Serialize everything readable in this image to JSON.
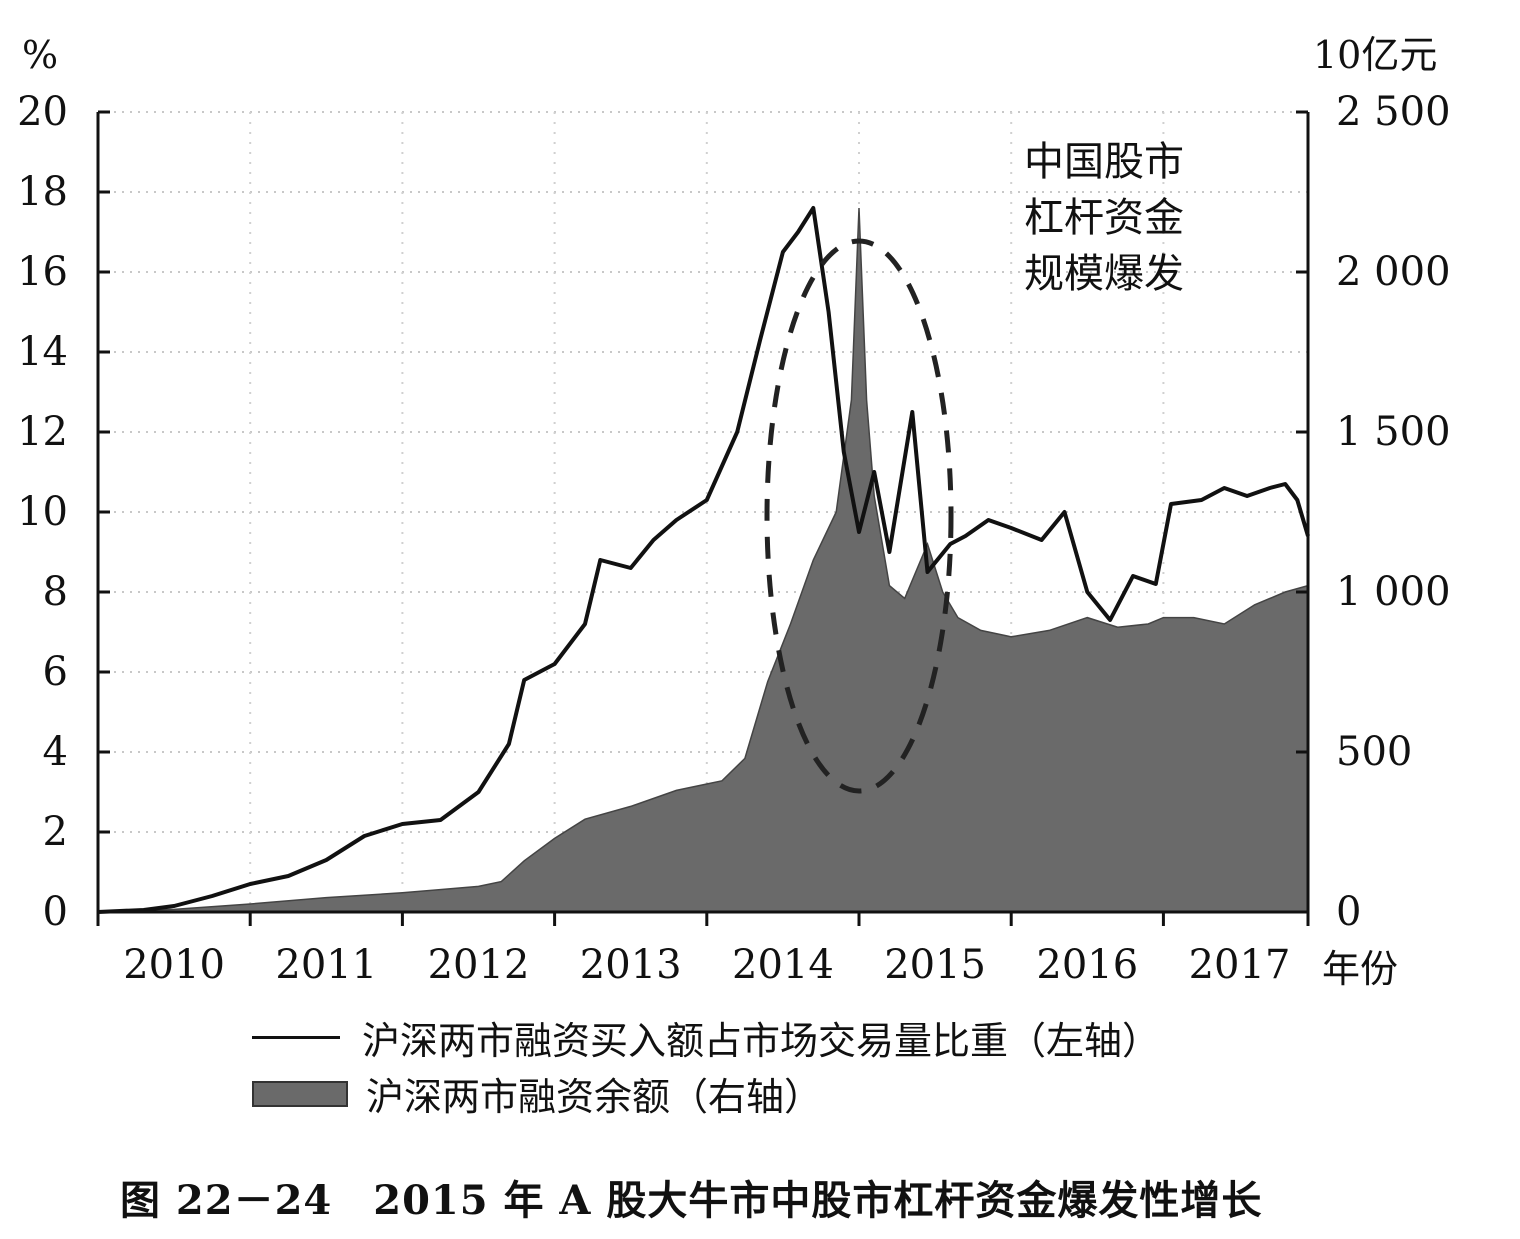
{
  "chart_data": {
    "type": "line",
    "left_unit": "%",
    "right_unit": "10亿元",
    "x_unit": "年份",
    "x_ticks": [
      "2010",
      "2011",
      "2012",
      "2013",
      "2014",
      "2015",
      "2016",
      "2017"
    ],
    "x_range": [
      2010.0,
      2017.95
    ],
    "left_ylim": [
      0,
      20
    ],
    "left_yticks": [
      "0",
      "2",
      "4",
      "6",
      "8",
      "10",
      "12",
      "14",
      "16",
      "18",
      "20"
    ],
    "right_ylim": [
      0,
      2500
    ],
    "right_yticks": [
      "0",
      "500",
      "1 000",
      "1 500",
      "2 000",
      "2 500"
    ],
    "grid": true,
    "annotation": [
      "中国股市",
      "杠杆资金",
      "规模爆发"
    ],
    "series": [
      {
        "name": "沪深两市融资买入额占市场交易量比重（左轴）",
        "axis": "left",
        "style": "line",
        "color": "#111111",
        "x": [
          2010.0,
          2010.3,
          2010.5,
          2010.75,
          2011.0,
          2011.25,
          2011.5,
          2011.75,
          2012.0,
          2012.25,
          2012.5,
          2012.7,
          2012.8,
          2013.0,
          2013.2,
          2013.3,
          2013.5,
          2013.65,
          2013.8,
          2014.0,
          2014.2,
          2014.35,
          2014.5,
          2014.6,
          2014.7,
          2014.8,
          2014.9,
          2015.0,
          2015.1,
          2015.2,
          2015.35,
          2015.45,
          2015.6,
          2015.7,
          2015.85,
          2016.0,
          2016.2,
          2016.35,
          2016.5,
          2016.65,
          2016.8,
          2016.95,
          2017.05,
          2017.25,
          2017.4,
          2017.55,
          2017.7,
          2017.8,
          2017.88,
          2017.95
        ],
        "values": [
          0.0,
          0.05,
          0.15,
          0.4,
          0.7,
          0.9,
          1.3,
          1.9,
          2.2,
          2.3,
          3.0,
          4.2,
          5.8,
          6.2,
          7.2,
          8.8,
          8.6,
          9.3,
          9.8,
          10.3,
          12.0,
          14.3,
          16.5,
          17.0,
          17.6,
          15.0,
          11.5,
          9.5,
          11.0,
          9.0,
          12.5,
          8.5,
          9.2,
          9.4,
          9.8,
          9.6,
          9.3,
          10.0,
          8.0,
          7.3,
          8.4,
          8.2,
          10.2,
          10.3,
          10.6,
          10.4,
          10.6,
          10.7,
          10.3,
          9.4
        ]
      },
      {
        "name": "沪深两市融资余额（右轴）",
        "axis": "right",
        "style": "area",
        "color": "#6a6a6a",
        "x": [
          2010.0,
          2010.5,
          2011.0,
          2011.5,
          2012.0,
          2012.5,
          2012.65,
          2012.8,
          2013.0,
          2013.2,
          2013.5,
          2013.8,
          2014.0,
          2014.1,
          2014.25,
          2014.4,
          2014.55,
          2014.7,
          2014.85,
          2014.95,
          2015.0,
          2015.05,
          2015.1,
          2015.2,
          2015.3,
          2015.45,
          2015.55,
          2015.65,
          2015.8,
          2016.0,
          2016.25,
          2016.5,
          2016.7,
          2016.9,
          2017.0,
          2017.2,
          2017.4,
          2017.6,
          2017.8,
          2017.95
        ],
        "values": [
          2,
          8,
          25,
          45,
          60,
          80,
          95,
          160,
          230,
          290,
          330,
          380,
          400,
          410,
          480,
          720,
          900,
          1100,
          1250,
          1600,
          2200,
          1600,
          1300,
          1020,
          980,
          1150,
          1000,
          920,
          880,
          860,
          880,
          920,
          890,
          900,
          920,
          920,
          900,
          960,
          1000,
          1020
        ]
      }
    ]
  },
  "legend": {
    "line_label": "沪深两市融资买入额占市场交易量比重（左轴）",
    "area_label": "沪深两市融资余额（右轴）"
  },
  "caption": "图 22－24　2015 年 A 股大牛市中股市杠杆资金爆发性增长"
}
